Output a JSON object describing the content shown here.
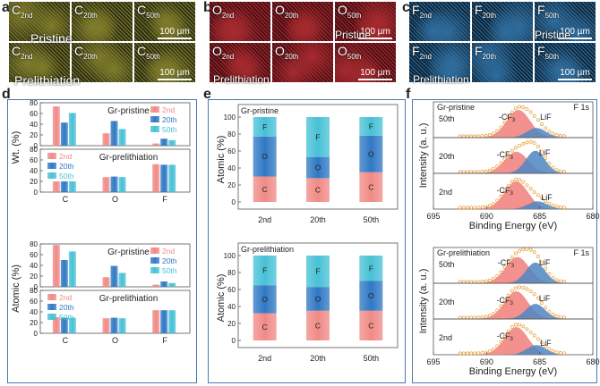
{
  "panels": {
    "a": "a",
    "b": "b",
    "c": "c",
    "d": "d",
    "e": "e",
    "f": "f"
  },
  "maps": {
    "scale_label": "100 µm",
    "row_labels": {
      "pristine": "Pristine",
      "prelithiation": "Prelithiation"
    },
    "cycles": [
      "2nd",
      "20th",
      "50th"
    ],
    "elements": [
      {
        "symbol": "C",
        "colors": {
          "dark": "#2e2f16",
          "light": "#7f7c2a"
        }
      },
      {
        "symbol": "O",
        "colors": {
          "dark": "#4a0f14",
          "light": "#a52a2e"
        }
      },
      {
        "symbol": "F",
        "colors": {
          "dark": "#0f2638",
          "light": "#2f6d9e"
        }
      }
    ]
  },
  "colors": {
    "c2": "#f08a86",
    "c20": "#2f78c4",
    "c50": "#47c1d6",
    "frame": "#4a78b0"
  },
  "chart_data": [
    {
      "id": "d-top",
      "type": "bar",
      "panel": "d",
      "ylabel": "Wt. (%)",
      "categories": [
        "C",
        "O",
        "F"
      ],
      "legend": [
        "2nd",
        "20th",
        "50th"
      ],
      "sub": [
        {
          "title": "Gr-pristine",
          "ylim": [
            0,
            80
          ],
          "ticks": [
            0,
            20,
            40,
            60,
            80
          ],
          "series": [
            {
              "name": "2nd",
              "values": [
                73,
                23,
                4
              ]
            },
            {
              "name": "20th",
              "values": [
                43,
                46,
                13
              ]
            },
            {
              "name": "50th",
              "values": [
                61,
                31,
                10
              ]
            }
          ]
        },
        {
          "title": "Gr-prelithiation",
          "ylim": [
            0,
            80
          ],
          "ticks": [
            0,
            20,
            40,
            60,
            80
          ],
          "series": [
            {
              "name": "2nd",
              "values": [
                20,
                28,
                52
              ]
            },
            {
              "name": "20th",
              "values": [
                20,
                29,
                51
              ]
            },
            {
              "name": "50th",
              "values": [
                20,
                28,
                51
              ]
            }
          ]
        }
      ]
    },
    {
      "id": "d-bottom",
      "type": "bar",
      "panel": "d",
      "ylabel": "Atomic (%)",
      "categories": [
        "C",
        "O",
        "F"
      ],
      "legend": [
        "2nd",
        "20th",
        "50th"
      ],
      "sub": [
        {
          "title": "Gr-pristine",
          "ylim": [
            0,
            80
          ],
          "ticks": [
            0,
            20,
            40,
            60,
            80
          ],
          "series": [
            {
              "name": "2nd",
              "values": [
                78,
                18,
                4
              ]
            },
            {
              "name": "20th",
              "values": [
                50,
                39,
                10
              ]
            },
            {
              "name": "50th",
              "values": [
                66,
                26,
                7
              ]
            }
          ]
        },
        {
          "title": "Gr-prelithiation",
          "ylim": [
            0,
            80
          ],
          "ticks": [
            0,
            20,
            40,
            60,
            80
          ],
          "series": [
            {
              "name": "2nd",
              "values": [
                30,
                28,
                43
              ]
            },
            {
              "name": "20th",
              "values": [
                29,
                29,
                43
              ]
            },
            {
              "name": "50th",
              "values": [
                29,
                28,
                43
              ]
            }
          ]
        }
      ]
    },
    {
      "id": "e-top",
      "type": "bar",
      "stacked": true,
      "panel": "e",
      "title": "Gr-pristine",
      "ylabel": "Atomic (%)",
      "categories": [
        "2nd",
        "20th",
        "50th"
      ],
      "ylim": [
        0,
        100
      ],
      "ticks": [
        0,
        20,
        40,
        60,
        80,
        100
      ],
      "series": [
        {
          "name": "C",
          "values": [
            30,
            28,
            35
          ]
        },
        {
          "name": "O",
          "values": [
            47,
            25,
            43
          ]
        },
        {
          "name": "F",
          "values": [
            23,
            47,
            22
          ]
        }
      ]
    },
    {
      "id": "e-bottom",
      "type": "bar",
      "stacked": true,
      "panel": "e",
      "title": "Gr-prelithiation",
      "ylabel": "Atomic (%)",
      "categories": [
        "2nd",
        "20th",
        "50th"
      ],
      "ylim": [
        0,
        100
      ],
      "ticks": [
        0,
        20,
        40,
        60,
        80,
        100
      ],
      "series": [
        {
          "name": "C",
          "values": [
            32,
            35,
            35
          ]
        },
        {
          "name": "O",
          "values": [
            33,
            28,
            35
          ]
        },
        {
          "name": "F",
          "values": [
            35,
            37,
            30
          ]
        }
      ]
    },
    {
      "id": "f-top",
      "type": "line",
      "panel": "f",
      "title": "Gr-pristine",
      "corner": "F 1s",
      "xlabel": "Binding Energy (eV)",
      "ylabel": "Intensity (a. u.)",
      "xlim": [
        695,
        680
      ],
      "xticks": [
        695,
        690,
        685,
        680
      ],
      "peak_labels": {
        "cf3": "-CF3",
        "lif": "LiF"
      },
      "traces": [
        {
          "name": "50th",
          "cf3_center": 687.0,
          "cf3_amp": 1.0,
          "lif_center": 685.3,
          "lif_amp": 0.35
        },
        {
          "name": "20th",
          "cf3_center": 687.2,
          "cf3_amp": 0.78,
          "lif_center": 685.4,
          "lif_amp": 0.82
        },
        {
          "name": "2nd",
          "cf3_center": 687.2,
          "cf3_amp": 1.0,
          "lif_center": 685.2,
          "lif_amp": 0.28
        }
      ]
    },
    {
      "id": "f-bottom",
      "type": "line",
      "panel": "f",
      "title": "Gr-prelithiation",
      "corner": "F 1s",
      "xlabel": "Binding Energy (eV)",
      "ylabel": "Intensity (a. u.)",
      "xlim": [
        695,
        680
      ],
      "xticks": [
        695,
        690,
        685,
        680
      ],
      "peak_labels": {
        "cf3": "-CF3",
        "lif": "LiF"
      },
      "traces": [
        {
          "name": "50th",
          "cf3_center": 687.1,
          "cf3_amp": 0.95,
          "lif_center": 685.4,
          "lif_amp": 0.75
        },
        {
          "name": "20th",
          "cf3_center": 687.2,
          "cf3_amp": 1.0,
          "lif_center": 685.4,
          "lif_amp": 0.55
        },
        {
          "name": "2nd",
          "cf3_center": 687.2,
          "cf3_amp": 1.0,
          "lif_center": 685.3,
          "lif_amp": 0.35
        }
      ]
    }
  ]
}
